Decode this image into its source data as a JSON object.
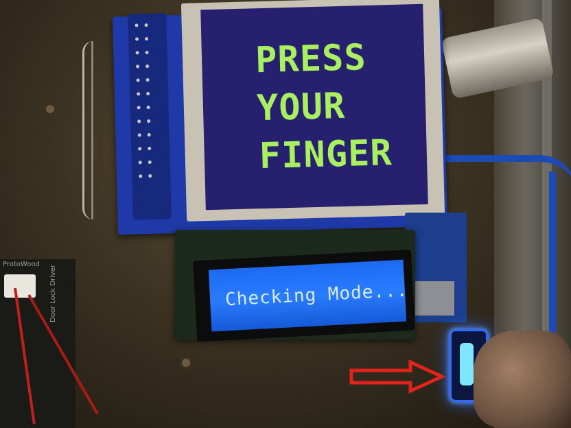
{
  "tft_display": {
    "lines": [
      "PRESS",
      "YOUR",
      "FINGER"
    ],
    "text_color": "#a8f060",
    "background_color": "#27206f"
  },
  "lcd_display": {
    "text": "Checking Mode...",
    "background_color": "#2a7cff"
  },
  "relay_module": {
    "label_top": "ProtoWood",
    "label_side": "Door Lock Driver"
  },
  "annotation": {
    "arrow_color": "#e0231b",
    "arrow_icon": "arrow-right-icon"
  },
  "fingerprint_sensor": {
    "glow_color": "#2f6bff"
  }
}
